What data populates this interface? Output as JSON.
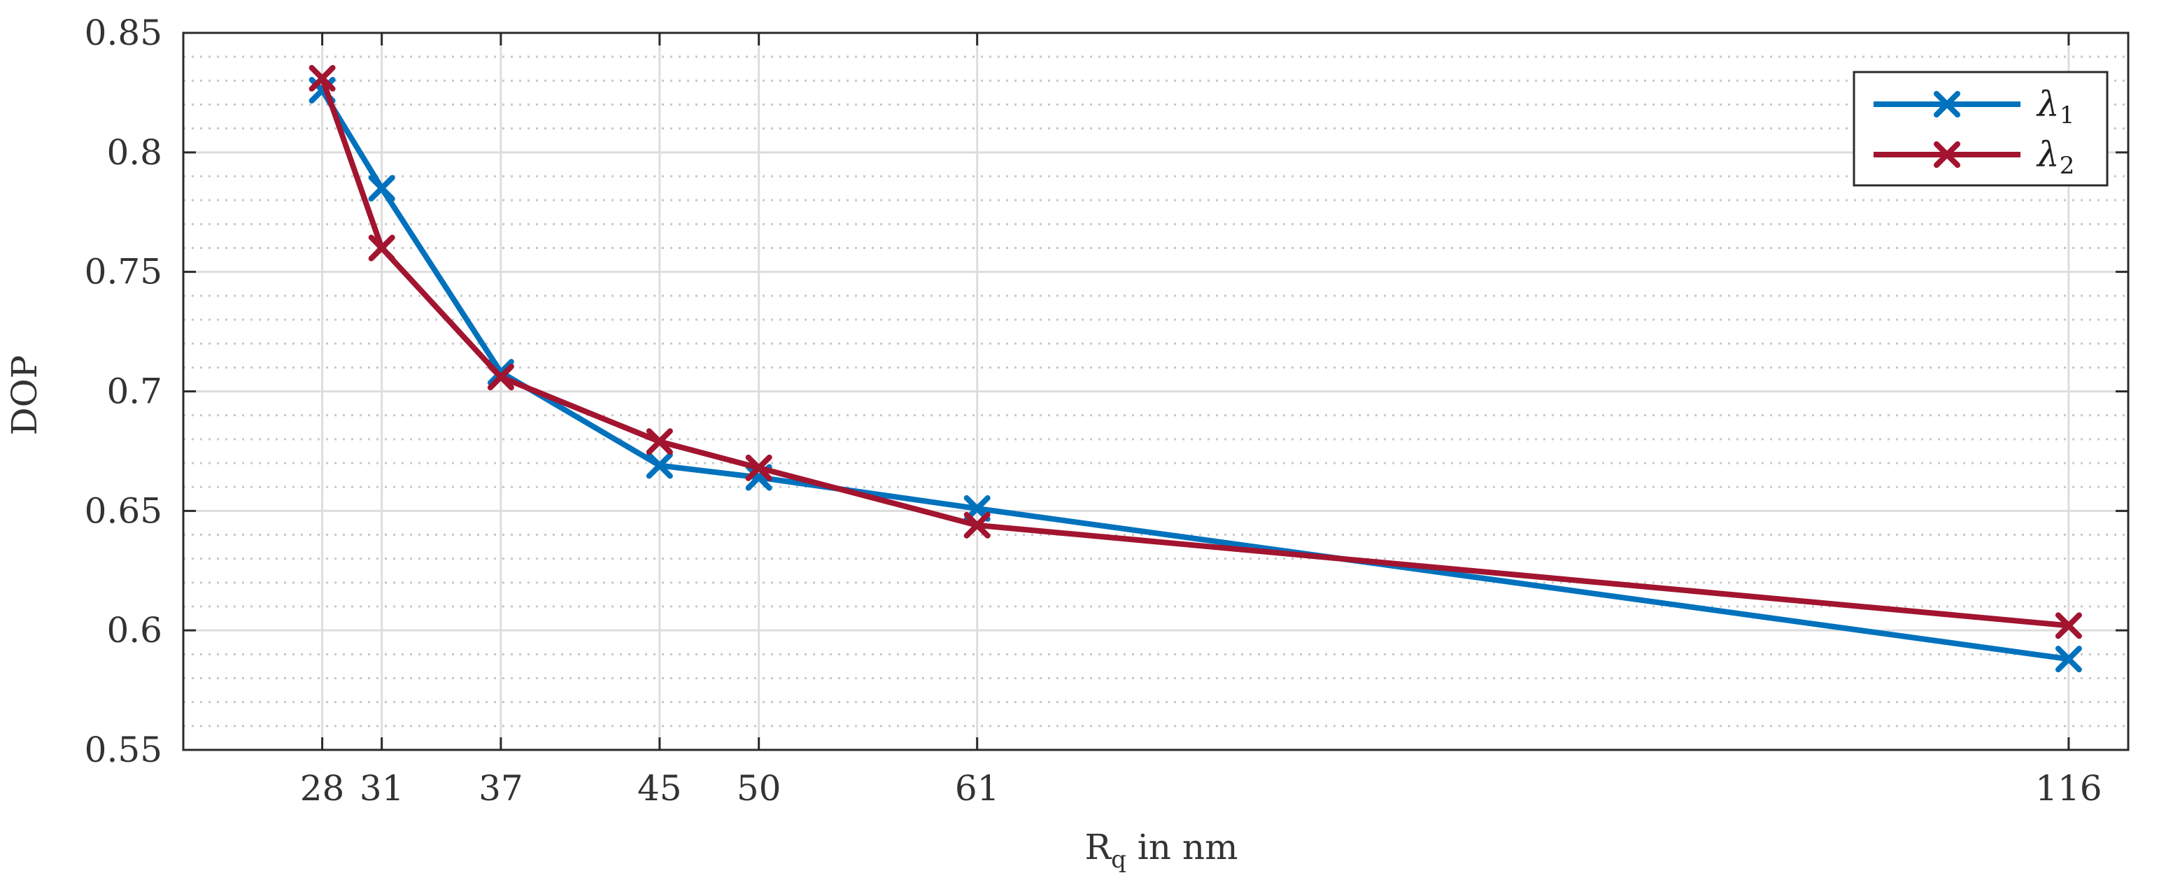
{
  "chart_data": {
    "type": "line",
    "title": "",
    "xlabel": "R",
    "xlabel_sub": "q",
    "xlabel_rest": " in nm",
    "ylabel": "DOP",
    "x": [
      28,
      31,
      37,
      45,
      50,
      61,
      116
    ],
    "xlim": [
      21,
      119
    ],
    "ylim": [
      0.55,
      0.85
    ],
    "xticks": [
      28,
      31,
      37,
      45,
      50,
      61,
      116
    ],
    "xtick_labels": [
      "28",
      "31",
      "37",
      "45",
      "50",
      "61",
      "116"
    ],
    "yticks": [
      0.55,
      0.6,
      0.65,
      0.7,
      0.75,
      0.8,
      0.85
    ],
    "ytick_labels": [
      "0.55",
      "0.6",
      "0.65",
      "0.7",
      "0.75",
      "0.8",
      "0.85"
    ],
    "grid": true,
    "minor_grid": true,
    "legend_position": "top-right",
    "series": [
      {
        "name": "λ",
        "name_sub": "1",
        "color": "#0072BD",
        "marker": "x",
        "values": [
          0.826,
          0.785,
          0.708,
          0.669,
          0.664,
          0.651,
          0.588
        ]
      },
      {
        "name": "λ",
        "name_sub": "2",
        "color": "#A2142F",
        "marker": "x",
        "values": [
          0.831,
          0.76,
          0.706,
          0.679,
          0.668,
          0.644,
          0.602
        ]
      }
    ]
  }
}
